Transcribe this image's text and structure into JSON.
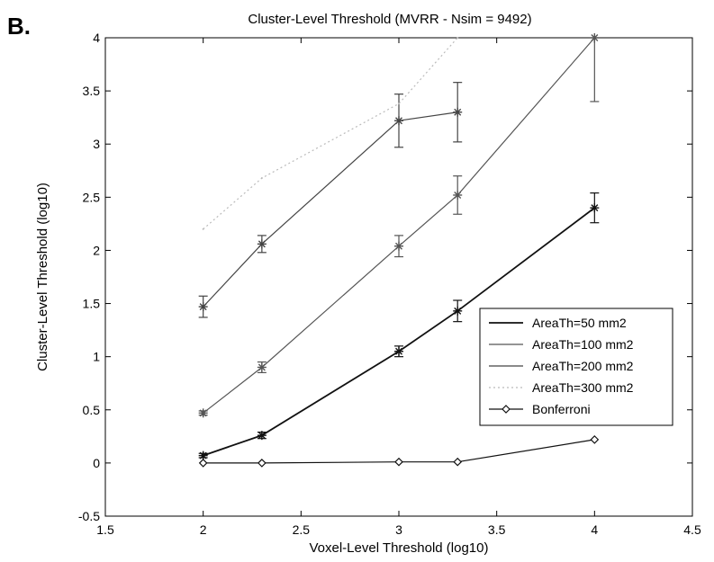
{
  "panel_label": "B.",
  "chart_data": {
    "type": "line",
    "title": "Cluster-Level Threshold (MVRR - Nsim = 9492)",
    "xlabel": "Voxel-Level Threshold (log10)",
    "ylabel": "Cluster-Level Threshold (log10)",
    "xlim": [
      1.5,
      4.5
    ],
    "ylim": [
      -0.5,
      4
    ],
    "xticks": [
      1.5,
      2,
      2.5,
      3,
      3.5,
      4,
      4.5
    ],
    "xtick_labels": [
      "1.5",
      "2",
      "2.5",
      "3",
      "3.5",
      "4",
      "4.5"
    ],
    "yticks": [
      -0.5,
      0,
      0.5,
      1,
      1.5,
      2,
      2.5,
      3,
      3.5,
      4
    ],
    "ytick_labels": [
      "-0.5",
      "0",
      "0.5",
      "1",
      "1.5",
      "2",
      "2.5",
      "3",
      "3.5",
      "4"
    ],
    "grid": false,
    "legend_position": "right",
    "series": [
      {
        "name": "AreaTh=50 mm2",
        "color": "#111111",
        "marker": "star",
        "x": [
          2,
          2.3,
          3,
          3.3,
          4
        ],
        "y": [
          0.07,
          0.26,
          1.05,
          1.43,
          2.4
        ],
        "err": [
          0.02,
          0.03,
          0.05,
          0.1,
          0.14
        ]
      },
      {
        "name": "AreaTh=100 mm2",
        "color": "#555555",
        "marker": "star",
        "x": [
          2,
          2.3,
          3,
          3.3,
          4
        ],
        "y": [
          0.47,
          0.9,
          2.04,
          2.52,
          4.0
        ],
        "err": [
          0.02,
          0.05,
          0.1,
          0.18,
          0.6
        ]
      },
      {
        "name": "AreaTh=200 mm2",
        "color": "#444444",
        "marker": "star",
        "x": [
          2,
          2.3,
          3,
          3.3
        ],
        "y": [
          1.47,
          2.06,
          3.22,
          3.3
        ],
        "err": [
          0.1,
          0.08,
          0.25,
          0.28
        ]
      },
      {
        "name": "AreaTh=300 mm2",
        "color": "#bbbbbb",
        "marker": "none",
        "x": [
          2,
          2.3,
          3,
          3.3
        ],
        "y": [
          2.2,
          2.68,
          3.38,
          4.0
        ],
        "err": []
      },
      {
        "name": "Bonferroni",
        "color": "#111111",
        "marker": "diamond",
        "x": [
          2,
          2.3,
          3,
          3.3,
          4
        ],
        "y": [
          0.0,
          0.0,
          0.01,
          0.01,
          0.22
        ],
        "err": []
      }
    ]
  }
}
